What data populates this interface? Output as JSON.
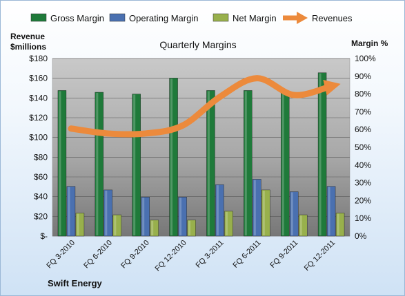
{
  "chart_data": {
    "type": "bar",
    "title": "Quarterly Margins",
    "footer": "Swift Energy",
    "left_axis": {
      "label_line1": "Revenue",
      "label_line2": "$millions",
      "ylim": [
        0,
        180
      ],
      "ticks": [
        0,
        20,
        40,
        60,
        80,
        100,
        120,
        140,
        160,
        180
      ],
      "tick_labels": [
        "$-",
        "$20",
        "$40",
        "$60",
        "$80",
        "$100",
        "$120",
        "$140",
        "$160",
        "$180"
      ]
    },
    "right_axis": {
      "label": "Margin %",
      "ylim": [
        0,
        100
      ],
      "ticks": [
        0,
        10,
        20,
        30,
        40,
        50,
        60,
        70,
        80,
        90,
        100
      ],
      "tick_labels": [
        "0%",
        "10%",
        "20%",
        "30%",
        "40%",
        "50%",
        "60%",
        "70%",
        "80%",
        "90%",
        "100%"
      ]
    },
    "categories": [
      "FQ 3-2010",
      "FQ 6-2010",
      "FQ 9-2010",
      "FQ 12-2010",
      "FQ 3-2011",
      "FQ 6-2011",
      "FQ 9-2011",
      "FQ 12-2011"
    ],
    "series": [
      {
        "name": "Gross Margin",
        "kind": "bar",
        "axis": "right",
        "color": "#1f7a3a",
        "values": [
          82,
          81,
          80,
          89,
          82,
          82,
          81,
          92
        ]
      },
      {
        "name": "Operating Margin",
        "kind": "bar",
        "axis": "right",
        "color": "#4a70b0",
        "values": [
          28,
          26,
          22,
          22,
          29,
          32,
          25,
          28
        ]
      },
      {
        "name": "Net Margin",
        "kind": "bar",
        "axis": "right",
        "color": "#98b04c",
        "values": [
          13,
          12,
          9,
          9,
          14,
          26,
          12,
          13
        ]
      },
      {
        "name": "Revenues",
        "kind": "line",
        "axis": "left",
        "color": "#ec8a3c",
        "values": [
          109,
          104,
          104,
          112,
          141,
          160,
          143,
          152
        ]
      }
    ],
    "legend_position": "top",
    "grid": true
  }
}
